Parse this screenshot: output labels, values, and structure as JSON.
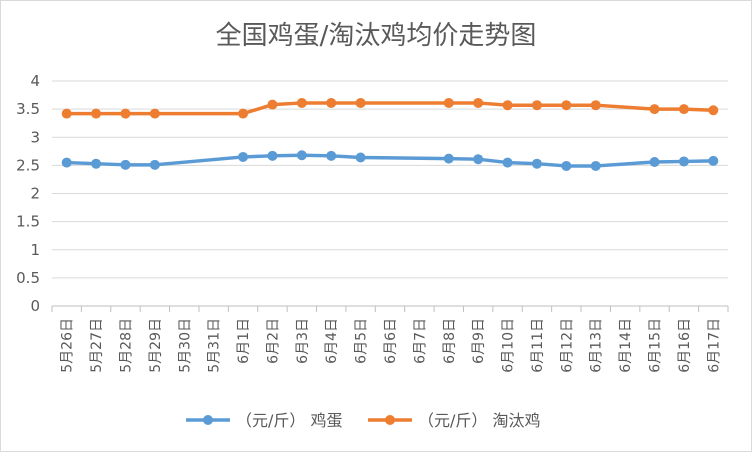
{
  "chart_data": {
    "type": "line",
    "title": "全国鸡蛋/淘汰鸡均价走势图",
    "xlabel": "",
    "ylabel": "",
    "ylim": [
      0,
      4
    ],
    "yticks": [
      "0",
      "0.5",
      "1",
      "1.5",
      "2",
      "2.5",
      "3",
      "3.5",
      "4"
    ],
    "grid": true,
    "legend_position": "bottom",
    "categories": [
      "5月26日",
      "5月27日",
      "5月28日",
      "5月29日",
      "5月30日",
      "5月31日",
      "6月1日",
      "6月2日",
      "6月3日",
      "6月4日",
      "6月5日",
      "6月6日",
      "6月7日",
      "6月8日",
      "6月9日",
      "6月10日",
      "6月11日",
      "6月12日",
      "6月13日",
      "6月14日",
      "6月15日",
      "6月16日",
      "6月17日"
    ],
    "series": [
      {
        "name": "（元/斤） 鸡蛋",
        "color": "#5b9bd5",
        "values": [
          2.55,
          2.53,
          2.51,
          2.51,
          null,
          null,
          2.65,
          2.67,
          2.68,
          2.67,
          2.64,
          null,
          null,
          2.62,
          2.61,
          2.55,
          2.53,
          2.49,
          2.49,
          null,
          2.56,
          2.57,
          2.58
        ]
      },
      {
        "name": "（元/斤） 淘汰鸡",
        "color": "#ed7d31",
        "values": [
          3.42,
          3.42,
          3.42,
          3.42,
          null,
          null,
          3.42,
          3.58,
          3.61,
          3.61,
          3.61,
          null,
          null,
          3.61,
          3.61,
          3.57,
          3.57,
          3.57,
          3.57,
          null,
          3.5,
          3.5,
          3.48
        ]
      }
    ]
  }
}
